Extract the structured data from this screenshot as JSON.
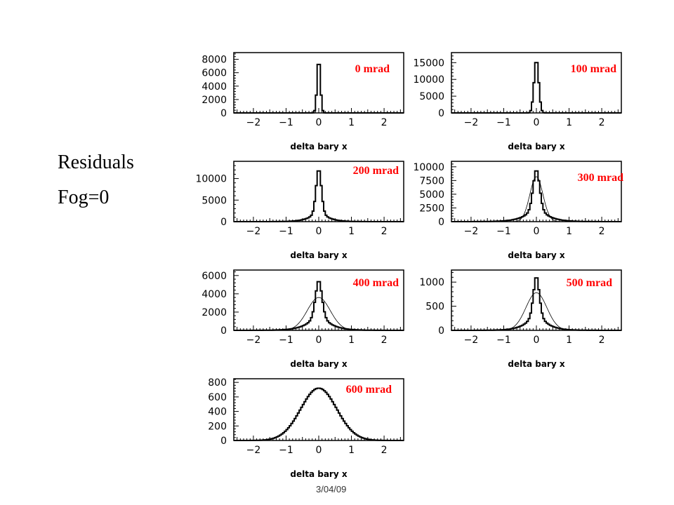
{
  "slide": {
    "title_line1": "Residuals",
    "title_line2": "Fog=0",
    "footer": "3/04/09"
  },
  "colors": {
    "angle_label": "#ff0000",
    "histogram": "#000000",
    "background": "#ffffff"
  },
  "chart_data": [
    {
      "type": "histogram",
      "label": "0 mrad",
      "xlabel": "delta bary x",
      "ylabel": "",
      "xlim": [
        -2.6,
        2.6
      ],
      "ylim": [
        0,
        9000
      ],
      "xticks": [
        -2,
        -1,
        0,
        1,
        2
      ],
      "yticks": [
        0,
        2000,
        4000,
        6000,
        8000
      ],
      "ytick_labels": [
        "0",
        "2000",
        "4000",
        "6000",
        "8000"
      ],
      "peak": 8200,
      "fit_curve": false,
      "grid": false
    },
    {
      "type": "histogram",
      "label": "100 mrad",
      "xlabel": "delta bary x",
      "ylabel": "",
      "xlim": [
        -2.6,
        2.6
      ],
      "ylim": [
        0,
        18000
      ],
      "xticks": [
        -2,
        -1,
        0,
        1,
        2
      ],
      "yticks": [
        0,
        5000,
        10000,
        15000
      ],
      "ytick_labels": [
        "0",
        "5000",
        "10000",
        "15000"
      ],
      "peak": 16000,
      "fit_curve": false,
      "grid": false
    },
    {
      "type": "histogram",
      "label": "200 mrad",
      "xlabel": "delta bary x",
      "ylabel": "",
      "xlim": [
        -2.6,
        2.6
      ],
      "ylim": [
        0,
        14000
      ],
      "xticks": [
        -2,
        -1,
        0,
        1,
        2
      ],
      "yticks": [
        0,
        5000,
        10000
      ],
      "ytick_labels": [
        "0",
        "5000",
        "10000"
      ],
      "peak": 12500,
      "fit_curve": false,
      "grid": false
    },
    {
      "type": "histogram",
      "label": "300 mrad",
      "xlabel": "delta bary x",
      "ylabel": "",
      "xlim": [
        -2.6,
        2.6
      ],
      "ylim": [
        0,
        11000
      ],
      "xticks": [
        -2,
        -1,
        0,
        1,
        2
      ],
      "yticks": [
        0,
        2500,
        5000,
        7500,
        10000
      ],
      "ytick_labels": [
        "0",
        "2500",
        "5000",
        "7500",
        "10000"
      ],
      "peak": 9700,
      "fit_peak": 8200,
      "fit_curve": true,
      "grid": false
    },
    {
      "type": "histogram",
      "label": "400 mrad",
      "xlabel": "delta bary x",
      "ylabel": "",
      "xlim": [
        -2.6,
        2.6
      ],
      "ylim": [
        0,
        6600
      ],
      "xticks": [
        -2,
        -1,
        0,
        1,
        2
      ],
      "yticks": [
        0,
        2000,
        4000,
        6000
      ],
      "ytick_labels": [
        "0",
        "2000",
        "4000",
        "6000"
      ],
      "peak": 5600,
      "fit_peak": 3600,
      "fit_curve": true,
      "grid": false
    },
    {
      "type": "histogram",
      "label": "500 mrad",
      "xlabel": "delta bary x",
      "ylabel": "",
      "xlim": [
        -2.6,
        2.6
      ],
      "ylim": [
        0,
        1250
      ],
      "xticks": [
        -2,
        -1,
        0,
        1,
        2
      ],
      "yticks": [
        0,
        500,
        1000
      ],
      "ytick_labels": [
        "0",
        "500",
        "1000"
      ],
      "peak": 1150,
      "fit_peak": 780,
      "fit_curve": true,
      "grid": false
    },
    {
      "type": "histogram",
      "label": "600 mrad",
      "xlabel": "delta bary x",
      "ylabel": "",
      "xlim": [
        -2.6,
        2.6
      ],
      "ylim": [
        0,
        850
      ],
      "xticks": [
        -2,
        -1,
        0,
        1,
        2
      ],
      "yticks": [
        0,
        200,
        400,
        600,
        800
      ],
      "ytick_labels": [
        "0",
        "200",
        "400",
        "600",
        "800"
      ],
      "peak": 720,
      "fit_curve": false,
      "grid": false
    }
  ]
}
